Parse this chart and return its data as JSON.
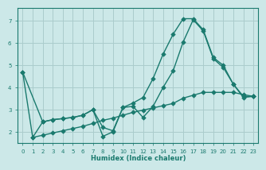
{
  "xlabel": "Humidex (Indice chaleur)",
  "bg_color": "#cce8e8",
  "grid_color": "#aacccc",
  "line_color": "#1a7a6e",
  "xlim": [
    -0.5,
    23.5
  ],
  "ylim": [
    1.5,
    7.6
  ],
  "xticks": [
    0,
    1,
    2,
    3,
    4,
    5,
    6,
    7,
    8,
    9,
    10,
    11,
    12,
    13,
    14,
    15,
    16,
    17,
    18,
    19,
    20,
    21,
    22,
    23
  ],
  "yticks": [
    2,
    3,
    4,
    5,
    6,
    7
  ],
  "line1_x": [
    0,
    1,
    2,
    3,
    4,
    5,
    6,
    7,
    8,
    9,
    10,
    11,
    12,
    13,
    14,
    15,
    16,
    17,
    18,
    19,
    20,
    21,
    22,
    23
  ],
  "line1_y": [
    4.7,
    1.75,
    2.45,
    2.55,
    2.6,
    2.65,
    2.75,
    3.0,
    2.2,
    2.05,
    3.1,
    3.15,
    2.65,
    3.15,
    4.0,
    4.75,
    6.05,
    7.05,
    6.55,
    5.3,
    4.9,
    4.15,
    3.6,
    3.6
  ],
  "line2_x": [
    0,
    2,
    3,
    4,
    5,
    6,
    7,
    8,
    9,
    10,
    11,
    12,
    13,
    14,
    15,
    16,
    17,
    18,
    19,
    20,
    21,
    22,
    23
  ],
  "line2_y": [
    4.7,
    2.45,
    2.55,
    2.6,
    2.65,
    2.75,
    3.0,
    1.8,
    2.0,
    3.1,
    3.3,
    3.55,
    4.4,
    5.5,
    6.4,
    7.1,
    7.1,
    6.6,
    5.35,
    5.0,
    4.15,
    3.55,
    3.6
  ],
  "line3_x": [
    1,
    2,
    3,
    4,
    5,
    6,
    7,
    8,
    9,
    10,
    11,
    12,
    13,
    14,
    15,
    16,
    17,
    18,
    19,
    20,
    21,
    22,
    23
  ],
  "line3_y": [
    1.75,
    1.85,
    1.95,
    2.05,
    2.15,
    2.25,
    2.38,
    2.52,
    2.62,
    2.75,
    2.88,
    2.98,
    3.08,
    3.18,
    3.28,
    3.52,
    3.65,
    3.78,
    3.78,
    3.78,
    3.78,
    3.68,
    3.6
  ]
}
